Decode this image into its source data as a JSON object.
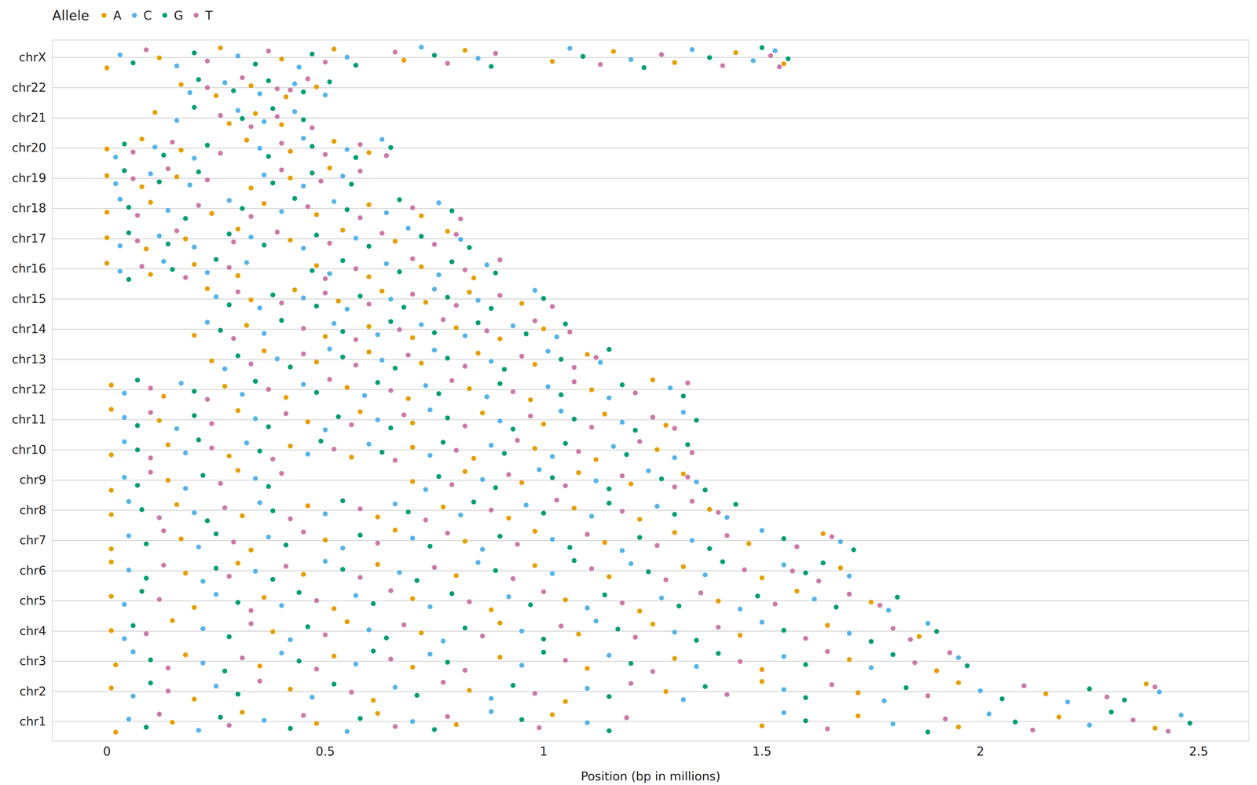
{
  "chart_data": {
    "type": "scatter",
    "x_label": "Position (bp in millions)",
    "legend_title": "Allele",
    "legend": "top-left",
    "grid": true,
    "xlim": [
      -0.125,
      2.615
    ],
    "xticks": [
      0,
      0.5,
      1,
      1.5,
      2,
      2.5
    ],
    "categories": [
      "chr1",
      "chr2",
      "chr3",
      "chr4",
      "chr5",
      "chr6",
      "chr7",
      "chr8",
      "chr9",
      "chr10",
      "chr11",
      "chr12",
      "chr13",
      "chr14",
      "chr15",
      "chr16",
      "chr17",
      "chr18",
      "chr19",
      "chr20",
      "chr21",
      "chr22",
      "chrX"
    ],
    "series": [
      {
        "name": "A",
        "color": "#E69F00",
        "values": {
          "chr1": [
            0.02,
            0.15,
            0.31,
            0.48,
            0.62,
            0.8,
            1.02,
            1.5,
            1.72,
            1.95,
            2.18,
            2.4
          ],
          "chr2": [
            0.01,
            0.2,
            0.42,
            0.61,
            0.83,
            1.05,
            1.28,
            1.5,
            1.72,
            1.95,
            2.15,
            2.38
          ],
          "chr3": [
            0.02,
            0.18,
            0.35,
            0.52,
            0.7,
            0.9,
            1.1,
            1.3,
            1.5,
            1.7,
            1.9
          ],
          "chr4": [
            0.01,
            0.15,
            0.38,
            0.55,
            0.72,
            0.9,
            1.08,
            1.25,
            1.45,
            1.65,
            1.86
          ],
          "chr5": [
            0.01,
            0.2,
            0.36,
            0.52,
            0.7,
            0.88,
            1.05,
            1.22,
            1.4,
            1.58,
            1.75
          ],
          "chr6": [
            0.01,
            0.18,
            0.3,
            0.45,
            0.62,
            0.8,
            0.98,
            1.15,
            1.32,
            1.5,
            1.68
          ],
          "chr7": [
            0.01,
            0.17,
            0.33,
            0.5,
            0.66,
            0.82,
            0.98,
            1.14,
            1.3,
            1.47,
            1.64
          ],
          "chr8": [
            0.01,
            0.16,
            0.31,
            0.46,
            0.62,
            0.77,
            0.92,
            1.07,
            1.22,
            1.38
          ],
          "chr9": [
            0.01,
            0.14,
            0.3,
            0.7,
            0.82,
            0.95,
            1.08,
            1.2,
            1.32
          ],
          "chr10": [
            0.01,
            0.14,
            0.28,
            0.42,
            0.56,
            0.7,
            0.84,
            0.98,
            1.12,
            1.26
          ],
          "chr11": [
            0.01,
            0.12,
            0.3,
            0.46,
            0.58,
            0.7,
            0.86,
            1.0,
            1.14,
            1.28
          ],
          "chr12": [
            0.01,
            0.13,
            0.27,
            0.41,
            0.55,
            0.69,
            0.83,
            0.97,
            1.11,
            1.25
          ],
          "chr13": [
            0.24,
            0.36,
            0.48,
            0.6,
            0.72,
            0.85,
            0.98,
            1.1
          ],
          "chr14": [
            0.2,
            0.32,
            0.5,
            0.6,
            0.7,
            0.8,
            0.9,
            1.0
          ],
          "chr15": [
            0.23,
            0.33,
            0.43,
            0.53,
            0.63,
            0.73,
            0.83,
            0.95
          ],
          "chr16": [
            0.0,
            0.1,
            0.2,
            0.3,
            0.48,
            0.6,
            0.72,
            0.84
          ],
          "chr17": [
            0.0,
            0.09,
            0.18,
            0.3,
            0.42,
            0.54,
            0.66,
            0.78
          ],
          "chr18": [
            0.0,
            0.1,
            0.24,
            0.36,
            0.48,
            0.6,
            0.72
          ],
          "chr19": [
            0.0,
            0.08,
            0.16,
            0.33,
            0.42,
            0.51
          ],
          "chr20": [
            0.0,
            0.08,
            0.17,
            0.32,
            0.42,
            0.52,
            0.6
          ],
          "chr21": [
            0.11,
            0.28,
            0.34,
            0.4
          ],
          "chr22": [
            0.17,
            0.25,
            0.33,
            0.41,
            0.48
          ],
          "chrX": [
            0.0,
            0.12,
            0.26,
            0.4,
            0.52,
            0.68,
            0.82,
            1.02,
            1.16,
            1.3,
            1.44,
            1.55
          ]
        }
      },
      {
        "name": "C",
        "color": "#56B4E9",
        "values": {
          "chr1": [
            0.05,
            0.21,
            0.36,
            0.55,
            0.7,
            0.88,
            1.1,
            1.55,
            1.8,
            2.02,
            2.25,
            2.46
          ],
          "chr2": [
            0.06,
            0.25,
            0.47,
            0.66,
            0.88,
            1.1,
            1.32,
            1.55,
            1.78,
            2.0,
            2.2,
            2.41
          ],
          "chr3": [
            0.06,
            0.22,
            0.4,
            0.57,
            0.74,
            0.95,
            1.15,
            1.35,
            1.55,
            1.75,
            1.95
          ],
          "chr4": [
            0.04,
            0.22,
            0.42,
            0.6,
            0.77,
            0.95,
            1.12,
            1.3,
            1.5,
            1.7,
            1.88
          ],
          "chr5": [
            0.04,
            0.25,
            0.4,
            0.57,
            0.74,
            0.92,
            1.1,
            1.27,
            1.45,
            1.62,
            1.79
          ],
          "chr6": [
            0.05,
            0.22,
            0.34,
            0.5,
            0.67,
            0.85,
            1.02,
            1.2,
            1.37,
            1.55,
            1.7
          ],
          "chr7": [
            0.05,
            0.21,
            0.37,
            0.54,
            0.7,
            0.86,
            1.02,
            1.18,
            1.34,
            1.5,
            1.68
          ],
          "chr8": [
            0.05,
            0.2,
            0.35,
            0.5,
            0.66,
            0.81,
            0.96,
            1.11,
            1.26,
            1.42
          ],
          "chr9": [
            0.04,
            0.18,
            0.34,
            0.73,
            0.86,
            0.99,
            1.12,
            1.24,
            1.35
          ],
          "chr10": [
            0.04,
            0.18,
            0.32,
            0.46,
            0.6,
            0.74,
            0.88,
            1.02,
            1.16,
            1.3
          ],
          "chr11": [
            0.04,
            0.16,
            0.34,
            0.5,
            0.62,
            0.74,
            0.9,
            1.04,
            1.18,
            1.32
          ],
          "chr12": [
            0.04,
            0.17,
            0.31,
            0.45,
            0.59,
            0.73,
            0.87,
            1.01,
            1.15,
            1.29
          ],
          "chr13": [
            0.27,
            0.39,
            0.51,
            0.63,
            0.75,
            0.88,
            1.01,
            1.13
          ],
          "chr14": [
            0.23,
            0.36,
            0.52,
            0.62,
            0.72,
            0.82,
            0.93,
            1.03
          ],
          "chr15": [
            0.25,
            0.35,
            0.45,
            0.55,
            0.65,
            0.75,
            0.85,
            0.98
          ],
          "chr16": [
            0.03,
            0.13,
            0.23,
            0.32,
            0.51,
            0.64,
            0.76,
            0.87
          ],
          "chr17": [
            0.03,
            0.12,
            0.2,
            0.33,
            0.45,
            0.57,
            0.69,
            0.81
          ],
          "chr18": [
            0.03,
            0.14,
            0.28,
            0.4,
            0.52,
            0.64,
            0.76
          ],
          "chr19": [
            0.02,
            0.1,
            0.19,
            0.36,
            0.45,
            0.54
          ],
          "chr20": [
            0.02,
            0.11,
            0.2,
            0.35,
            0.45,
            0.55,
            0.63
          ],
          "chr21": [
            0.16,
            0.3,
            0.36,
            0.43
          ],
          "chr22": [
            0.19,
            0.27,
            0.35,
            0.43,
            0.5
          ],
          "chrX": [
            0.03,
            0.16,
            0.3,
            0.44,
            0.55,
            0.72,
            0.85,
            1.06,
            1.2,
            1.34,
            1.48,
            1.53
          ]
        }
      },
      {
        "name": "G",
        "color": "#009E73",
        "values": {
          "chr1": [
            0.09,
            0.26,
            0.42,
            0.58,
            0.75,
            0.95,
            1.15,
            1.6,
            1.88,
            2.08,
            2.3,
            2.48
          ],
          "chr2": [
            0.1,
            0.3,
            0.52,
            0.71,
            0.93,
            1.15,
            1.37,
            1.6,
            1.83,
            2.05,
            2.25,
            2.33
          ],
          "chr3": [
            0.1,
            0.27,
            0.44,
            0.61,
            0.78,
            1.0,
            1.2,
            1.4,
            1.6,
            1.8,
            1.97
          ],
          "chr4": [
            0.06,
            0.28,
            0.46,
            0.64,
            0.82,
            1.0,
            1.17,
            1.35,
            1.55,
            1.75,
            1.9
          ],
          "chr5": [
            0.08,
            0.3,
            0.44,
            0.61,
            0.79,
            0.97,
            1.14,
            1.31,
            1.49,
            1.67,
            1.81
          ],
          "chr6": [
            0.09,
            0.25,
            0.38,
            0.54,
            0.71,
            0.89,
            1.07,
            1.24,
            1.41,
            1.6,
            1.64
          ],
          "chr7": [
            0.09,
            0.25,
            0.41,
            0.58,
            0.74,
            0.9,
            1.06,
            1.22,
            1.38,
            1.55,
            1.71
          ],
          "chr8": [
            0.08,
            0.23,
            0.38,
            0.54,
            0.69,
            0.84,
            1.0,
            1.15,
            1.3,
            1.44
          ],
          "chr9": [
            0.07,
            0.22,
            0.37,
            0.76,
            0.89,
            1.02,
            1.15,
            1.27,
            1.37
          ],
          "chr10": [
            0.07,
            0.21,
            0.35,
            0.49,
            0.63,
            0.77,
            0.91,
            1.05,
            1.19,
            1.33
          ],
          "chr11": [
            0.07,
            0.2,
            0.37,
            0.53,
            0.65,
            0.78,
            0.93,
            1.07,
            1.21,
            1.35
          ],
          "chr12": [
            0.07,
            0.2,
            0.34,
            0.48,
            0.62,
            0.76,
            0.9,
            1.04,
            1.18,
            1.32
          ],
          "chr13": [
            0.3,
            0.42,
            0.54,
            0.66,
            0.78,
            0.91,
            1.04,
            1.15
          ],
          "chr14": [
            0.26,
            0.4,
            0.54,
            0.65,
            0.75,
            0.85,
            0.96,
            1.05
          ],
          "chr15": [
            0.28,
            0.38,
            0.48,
            0.58,
            0.68,
            0.78,
            0.88,
            1.0
          ],
          "chr16": [
            0.05,
            0.15,
            0.25,
            0.47,
            0.54,
            0.67,
            0.79,
            0.89
          ],
          "chr17": [
            0.05,
            0.14,
            0.28,
            0.36,
            0.48,
            0.6,
            0.72,
            0.83
          ],
          "chr18": [
            0.05,
            0.18,
            0.31,
            0.43,
            0.55,
            0.67,
            0.79
          ],
          "chr19": [
            0.04,
            0.12,
            0.21,
            0.38,
            0.47,
            0.56
          ],
          "chr20": [
            0.04,
            0.13,
            0.23,
            0.37,
            0.47,
            0.57,
            0.65
          ],
          "chr21": [
            0.2,
            0.31,
            0.38,
            0.45
          ],
          "chr22": [
            0.21,
            0.29,
            0.37,
            0.45,
            0.51
          ],
          "chrX": [
            0.06,
            0.2,
            0.34,
            0.47,
            0.57,
            0.75,
            0.88,
            1.09,
            1.23,
            1.38,
            1.5,
            1.56
          ]
        }
      },
      {
        "name": "T",
        "color": "#CC79A7",
        "values": {
          "chr1": [
            0.12,
            0.28,
            0.45,
            0.66,
            0.78,
            0.99,
            1.19,
            1.65,
            1.92,
            2.12,
            2.35,
            2.43
          ],
          "chr2": [
            0.14,
            0.35,
            0.56,
            0.77,
            0.98,
            1.2,
            1.42,
            1.66,
            1.88,
            2.1,
            2.29,
            2.4
          ],
          "chr3": [
            0.14,
            0.31,
            0.48,
            0.65,
            0.82,
            1.05,
            1.25,
            1.45,
            1.65,
            1.85,
            1.93
          ],
          "chr4": [
            0.09,
            0.33,
            0.5,
            0.68,
            0.86,
            1.04,
            1.21,
            1.4,
            1.6,
            1.8,
            1.84
          ],
          "chr5": [
            0.12,
            0.33,
            0.48,
            0.65,
            0.83,
            1.0,
            1.18,
            1.36,
            1.53,
            1.7,
            1.77
          ],
          "chr6": [
            0.13,
            0.28,
            0.41,
            0.58,
            0.75,
            0.93,
            1.11,
            1.28,
            1.46,
            1.63,
            1.57
          ],
          "chr7": [
            0.13,
            0.29,
            0.45,
            0.62,
            0.78,
            0.94,
            1.1,
            1.26,
            1.42,
            1.58,
            1.66
          ],
          "chr8": [
            0.12,
            0.27,
            0.42,
            0.58,
            0.73,
            0.88,
            1.03,
            1.18,
            1.34,
            1.4
          ],
          "chr9": [
            0.1,
            0.26,
            0.4,
            0.79,
            0.92,
            1.05,
            1.18,
            1.3,
            1.33
          ],
          "chr10": [
            0.1,
            0.24,
            0.38,
            0.52,
            0.66,
            0.8,
            0.94,
            1.08,
            1.22,
            1.34
          ],
          "chr11": [
            0.1,
            0.24,
            0.41,
            0.56,
            0.68,
            0.82,
            0.97,
            1.11,
            1.25,
            1.3
          ],
          "chr12": [
            0.1,
            0.23,
            0.37,
            0.51,
            0.65,
            0.79,
            0.93,
            1.07,
            1.21,
            1.33
          ],
          "chr13": [
            0.33,
            0.45,
            0.57,
            0.69,
            0.82,
            0.95,
            1.07,
            1.12
          ],
          "chr14": [
            0.29,
            0.45,
            0.57,
            0.67,
            0.77,
            0.87,
            0.98,
            1.06
          ],
          "chr15": [
            0.3,
            0.4,
            0.5,
            0.6,
            0.7,
            0.8,
            0.9,
            1.02
          ],
          "chr16": [
            0.08,
            0.18,
            0.28,
            0.5,
            0.57,
            0.7,
            0.82,
            0.9
          ],
          "chr17": [
            0.07,
            0.16,
            0.29,
            0.39,
            0.51,
            0.63,
            0.75,
            0.8
          ],
          "chr18": [
            0.07,
            0.21,
            0.33,
            0.46,
            0.58,
            0.7,
            0.81
          ],
          "chr19": [
            0.06,
            0.14,
            0.23,
            0.4,
            0.49,
            0.58
          ],
          "chr20": [
            0.06,
            0.15,
            0.26,
            0.4,
            0.5,
            0.58,
            0.64
          ],
          "chr21": [
            0.26,
            0.33,
            0.39,
            0.47
          ],
          "chr22": [
            0.23,
            0.31,
            0.39,
            0.46,
            0.42
          ],
          "chrX": [
            0.09,
            0.23,
            0.37,
            0.5,
            0.66,
            0.78,
            0.89,
            1.13,
            1.27,
            1.41,
            1.52,
            1.54
          ]
        }
      }
    ]
  }
}
